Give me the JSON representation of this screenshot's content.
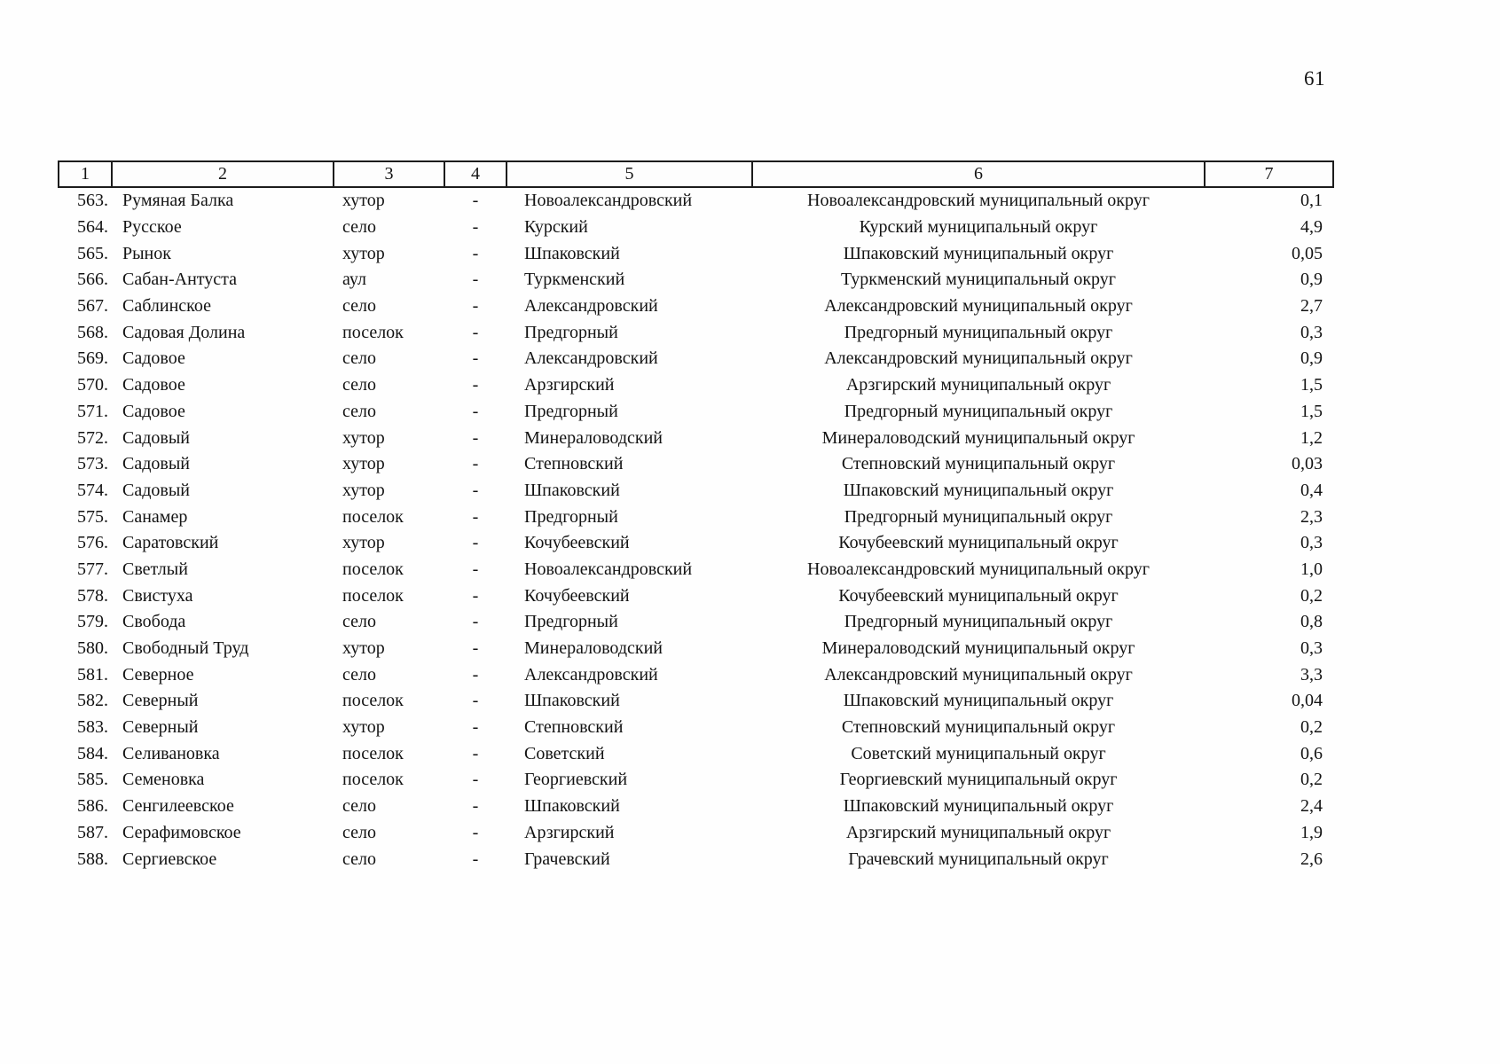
{
  "page": {
    "number": "61"
  },
  "table": {
    "header": [
      "1",
      "2",
      "3",
      "4",
      "5",
      "6",
      "7"
    ],
    "rows": [
      [
        "563.",
        "Румяная Балка",
        "хутор",
        "-",
        "Новоалександровский",
        "Новоалександровский муниципальный округ",
        "0,1"
      ],
      [
        "564.",
        "Русское",
        "село",
        "-",
        "Курский",
        "Курский муниципальный округ",
        "4,9"
      ],
      [
        "565.",
        "Рынок",
        "хутор",
        "-",
        "Шпаковский",
        "Шпаковский муниципальный округ",
        "0,05"
      ],
      [
        "566.",
        "Сабан-Антуста",
        "аул",
        "-",
        "Туркменский",
        "Туркменский муниципальный округ",
        "0,9"
      ],
      [
        "567.",
        "Саблинское",
        "село",
        "-",
        "Александровский",
        "Александровский муниципальный округ",
        "2,7"
      ],
      [
        "568.",
        "Садовая Долина",
        "поселок",
        "-",
        "Предгорный",
        "Предгорный муниципальный округ",
        "0,3"
      ],
      [
        "569.",
        "Садовое",
        "село",
        "-",
        "Александровский",
        "Александровский муниципальный округ",
        "0,9"
      ],
      [
        "570.",
        "Садовое",
        "село",
        "-",
        "Арзгирский",
        "Арзгирский муниципальный округ",
        "1,5"
      ],
      [
        "571.",
        "Садовое",
        "село",
        "-",
        "Предгорный",
        "Предгорный муниципальный округ",
        "1,5"
      ],
      [
        "572.",
        "Садовый",
        "хутор",
        "-",
        "Минераловодский",
        "Минераловодский муниципальный округ",
        "1,2"
      ],
      [
        "573.",
        "Садовый",
        "хутор",
        "-",
        "Степновский",
        "Степновский муниципальный округ",
        "0,03"
      ],
      [
        "574.",
        "Садовый",
        "хутор",
        "-",
        "Шпаковский",
        "Шпаковский муниципальный округ",
        "0,4"
      ],
      [
        "575.",
        "Санамер",
        "поселок",
        "-",
        "Предгорный",
        "Предгорный муниципальный округ",
        "2,3"
      ],
      [
        "576.",
        "Саратовский",
        "хутор",
        "-",
        "Кочубеевский",
        "Кочубеевский муниципальный округ",
        "0,3"
      ],
      [
        "577.",
        "Светлый",
        "поселок",
        "-",
        "Новоалександровский",
        "Новоалександровский муниципальный округ",
        "1,0"
      ],
      [
        "578.",
        "Свистуха",
        "поселок",
        "-",
        "Кочубеевский",
        "Кочубеевский муниципальный округ",
        "0,2"
      ],
      [
        "579.",
        "Свобода",
        "село",
        "-",
        "Предгорный",
        "Предгорный муниципальный округ",
        "0,8"
      ],
      [
        "580.",
        "Свободный Труд",
        "хутор",
        "-",
        "Минераловодский",
        "Минераловодский муниципальный округ",
        "0,3"
      ],
      [
        "581.",
        "Северное",
        "село",
        "-",
        "Александровский",
        "Александровский муниципальный округ",
        "3,3"
      ],
      [
        "582.",
        "Северный",
        "поселок",
        "-",
        "Шпаковский",
        "Шпаковский муниципальный округ",
        "0,04"
      ],
      [
        "583.",
        "Северный",
        "хутор",
        "-",
        "Степновский",
        "Степновский муниципальный округ",
        "0,2"
      ],
      [
        "584.",
        "Селивановка",
        "поселок",
        "-",
        "Советский",
        "Советский муниципальный округ",
        "0,6"
      ],
      [
        "585.",
        "Семеновка",
        "поселок",
        "-",
        "Георгиевский",
        "Георгиевский муниципальный округ",
        "0,2"
      ],
      [
        "586.",
        "Сенгилеевское",
        "село",
        "-",
        "Шпаковский",
        "Шпаковский муниципальный округ",
        "2,4"
      ],
      [
        "587.",
        "Серафимовское",
        "село",
        "-",
        "Арзгирский",
        "Арзгирский муниципальный округ",
        "1,9"
      ],
      [
        "588.",
        "Сергиевское",
        "село",
        "-",
        "Грачевский",
        "Грачевский муниципальный округ",
        "2,6"
      ]
    ]
  }
}
